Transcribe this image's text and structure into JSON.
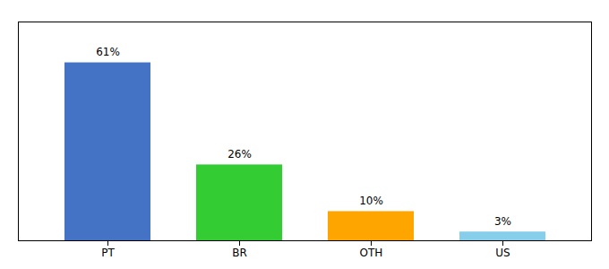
{
  "chart_data": {
    "type": "bar",
    "categories": [
      "PT",
      "BR",
      "OTH",
      "US"
    ],
    "values": [
      61,
      26,
      10,
      3
    ],
    "value_labels": [
      "61%",
      "26%",
      "10%",
      "3%"
    ],
    "colors": [
      "#4472C4",
      "#33CC33",
      "#FFA500",
      "#87CEEB"
    ],
    "ylim": [
      0,
      75
    ],
    "data_labels": true,
    "tick_labels": "x"
  }
}
